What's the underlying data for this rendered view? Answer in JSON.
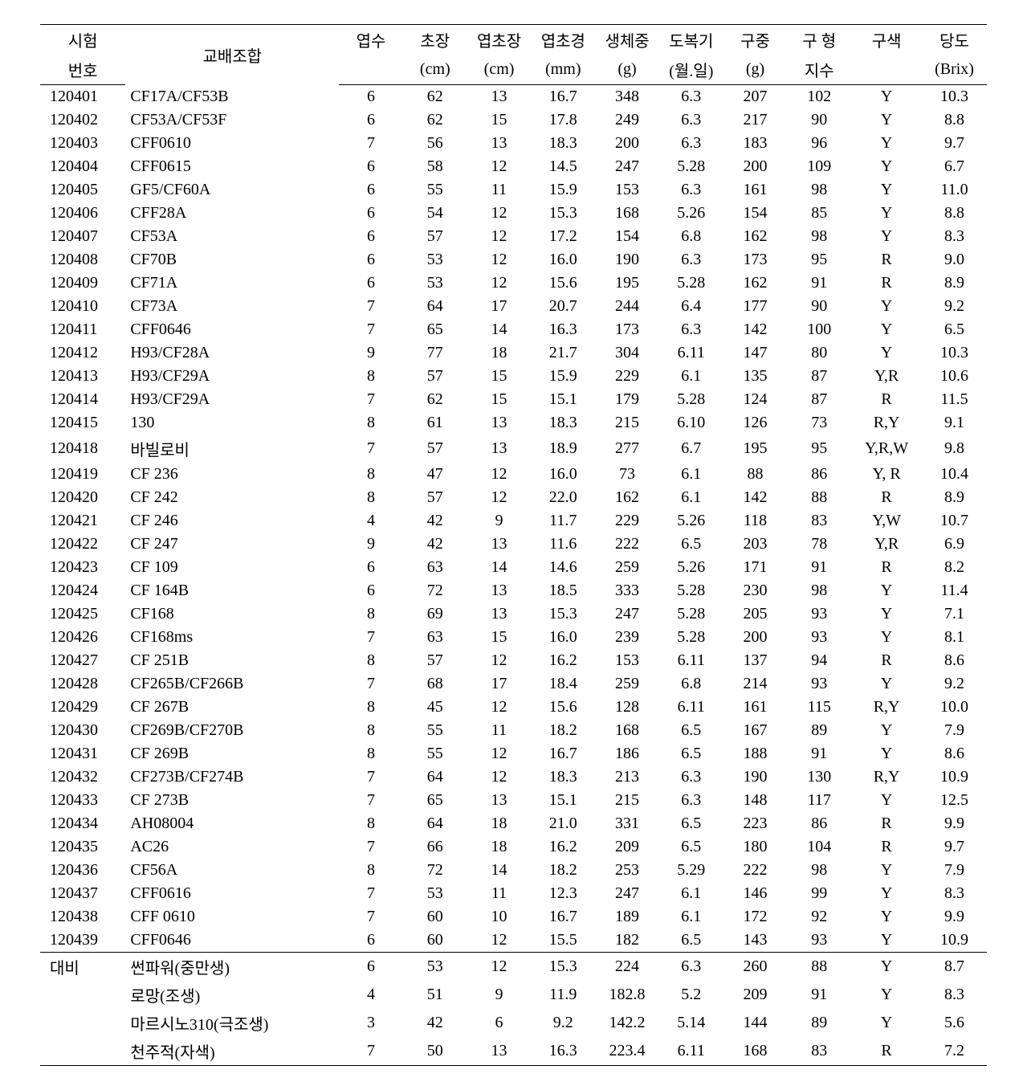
{
  "headers": {
    "row1": [
      "시험",
      "교배조합",
      "엽수",
      "초장",
      "엽초장",
      "엽초경",
      "생체중",
      "도복기",
      "구중",
      "구 형",
      "구색",
      "당도"
    ],
    "row2": [
      "번호",
      "",
      "",
      "(cm)",
      "(cm)",
      "(mm)",
      "(g)",
      "(월.일)",
      "(g)",
      "지수",
      "",
      "(Brix)"
    ]
  },
  "rows": [
    [
      "120401",
      "CF17A/CF53B",
      "6",
      "62",
      "13",
      "16.7",
      "348",
      "6.3",
      "207",
      "102",
      "Y",
      "10.3"
    ],
    [
      "120402",
      "CF53A/CF53F",
      "6",
      "62",
      "15",
      "17.8",
      "249",
      "6.3",
      "217",
      "90",
      "Y",
      "8.8"
    ],
    [
      "120403",
      "CFF0610",
      "7",
      "56",
      "13",
      "18.3",
      "200",
      "6.3",
      "183",
      "96",
      "Y",
      "9.7"
    ],
    [
      "120404",
      "CFF0615",
      "6",
      "58",
      "12",
      "14.5",
      "247",
      "5.28",
      "200",
      "109",
      "Y",
      "6.7"
    ],
    [
      "120405",
      "GF5/CF60A",
      "6",
      "55",
      "11",
      "15.9",
      "153",
      "6.3",
      "161",
      "98",
      "Y",
      "11.0"
    ],
    [
      "120406",
      "CFF28A",
      "6",
      "54",
      "12",
      "15.3",
      "168",
      "5.26",
      "154",
      "85",
      "Y",
      "8.8"
    ],
    [
      "120407",
      "CF53A",
      "6",
      "57",
      "12",
      "17.2",
      "154",
      "6.8",
      "162",
      "98",
      "Y",
      "8.3"
    ],
    [
      "120408",
      "CF70B",
      "6",
      "53",
      "12",
      "16.0",
      "190",
      "6.3",
      "173",
      "95",
      "R",
      "9.0"
    ],
    [
      "120409",
      "CF71A",
      "6",
      "53",
      "12",
      "15.6",
      "195",
      "5.28",
      "162",
      "91",
      "R",
      "8.9"
    ],
    [
      "120410",
      "CF73A",
      "7",
      "64",
      "17",
      "20.7",
      "244",
      "6.4",
      "177",
      "90",
      "Y",
      "9.2"
    ],
    [
      "120411",
      "CFF0646",
      "7",
      "65",
      "14",
      "16.3",
      "173",
      "6.3",
      "142",
      "100",
      "Y",
      "6.5"
    ],
    [
      "120412",
      "H93/CF28A",
      "9",
      "77",
      "18",
      "21.7",
      "304",
      "6.11",
      "147",
      "80",
      "Y",
      "10.3"
    ],
    [
      "120413",
      "H93/CF29A",
      "8",
      "57",
      "15",
      "15.9",
      "229",
      "6.1",
      "135",
      "87",
      "Y,R",
      "10.6"
    ],
    [
      "120414",
      "H93/CF29A",
      "7",
      "62",
      "15",
      "15.1",
      "179",
      "5.28",
      "124",
      "87",
      "R",
      "11.5"
    ],
    [
      "120415",
      "130",
      "8",
      "61",
      "13",
      "18.3",
      "215",
      "6.10",
      "126",
      "73",
      "R,Y",
      "9.1"
    ],
    [
      "120418",
      "바빌로비",
      "7",
      "57",
      "13",
      "18.9",
      "277",
      "6.7",
      "195",
      "95",
      "Y,R,W",
      "9.8"
    ],
    [
      "120419",
      "CF 236",
      "8",
      "47",
      "12",
      "16.0",
      "73",
      "6.1",
      "88",
      "86",
      "Y, R",
      "10.4"
    ],
    [
      "120420",
      "CF 242",
      "8",
      "57",
      "12",
      "22.0",
      "162",
      "6.1",
      "142",
      "88",
      "R",
      "8.9"
    ],
    [
      "120421",
      "CF 246",
      "4",
      "42",
      "9",
      "11.7",
      "229",
      "5.26",
      "118",
      "83",
      "Y,W",
      "10.7"
    ],
    [
      "120422",
      "CF 247",
      "9",
      "42",
      "13",
      "11.6",
      "222",
      "6.5",
      "203",
      "78",
      "Y,R",
      "6.9"
    ],
    [
      "120423",
      "CF 109",
      "6",
      "63",
      "14",
      "14.6",
      "259",
      "5.26",
      "171",
      "91",
      "R",
      "8.2"
    ],
    [
      "120424",
      "CF 164B",
      "6",
      "72",
      "13",
      "18.5",
      "333",
      "5.28",
      "230",
      "98",
      "Y",
      "11.4"
    ],
    [
      "120425",
      "CF168",
      "8",
      "69",
      "13",
      "15.3",
      "247",
      "5.28",
      "205",
      "93",
      "Y",
      "7.1"
    ],
    [
      "120426",
      "CF168ms",
      "7",
      "63",
      "15",
      "16.0",
      "239",
      "5.28",
      "200",
      "93",
      "Y",
      "8.1"
    ],
    [
      "120427",
      "CF 251B",
      "8",
      "57",
      "12",
      "16.2",
      "153",
      "6.11",
      "137",
      "94",
      "R",
      "8.6"
    ],
    [
      "120428",
      "CF265B/CF266B",
      "7",
      "68",
      "17",
      "18.4",
      "259",
      "6.8",
      "214",
      "93",
      "Y",
      "9.2"
    ],
    [
      "120429",
      "CF 267B",
      "8",
      "45",
      "12",
      "15.6",
      "128",
      "6.11",
      "161",
      "115",
      "R,Y",
      "10.0"
    ],
    [
      "120430",
      "CF269B/CF270B",
      "8",
      "55",
      "11",
      "18.2",
      "168",
      "6.5",
      "167",
      "89",
      "Y",
      "7.9"
    ],
    [
      "120431",
      "CF 269B",
      "8",
      "55",
      "12",
      "16.7",
      "186",
      "6.5",
      "188",
      "91",
      "Y",
      "8.6"
    ],
    [
      "120432",
      "CF273B/CF274B",
      "7",
      "64",
      "12",
      "18.3",
      "213",
      "6.3",
      "190",
      "130",
      "R,Y",
      "10.9"
    ],
    [
      "120433",
      "CF 273B",
      "7",
      "65",
      "13",
      "15.1",
      "215",
      "6.3",
      "148",
      "117",
      "Y",
      "12.5"
    ],
    [
      "120434",
      "AH08004",
      "8",
      "64",
      "18",
      "21.0",
      "331",
      "6.5",
      "223",
      "86",
      "R",
      "9.9"
    ],
    [
      "120435",
      "AC26",
      "7",
      "66",
      "18",
      "16.2",
      "209",
      "6.5",
      "180",
      "104",
      "R",
      "9.7"
    ],
    [
      "120436",
      "CF56A",
      "8",
      "72",
      "14",
      "18.2",
      "253",
      "5.29",
      "222",
      "98",
      "Y",
      "7.9"
    ],
    [
      "120437",
      "CFF0616",
      "7",
      "53",
      "11",
      "12.3",
      "247",
      "6.1",
      "146",
      "99",
      "Y",
      "8.3"
    ],
    [
      "120438",
      "CFF 0610",
      "7",
      "60",
      "10",
      "16.7",
      "189",
      "6.1",
      "172",
      "92",
      "Y",
      "9.9"
    ],
    [
      "120439",
      "CFF0646",
      "6",
      "60",
      "12",
      "15.5",
      "182",
      "6.5",
      "143",
      "93",
      "Y",
      "10.9"
    ]
  ],
  "compare_rows": [
    [
      "대비",
      "썬파워(중만생)",
      "6",
      "53",
      "12",
      "15.3",
      "224",
      "6.3",
      "260",
      "88",
      "Y",
      "8.7"
    ],
    [
      "",
      "로망(조생)",
      "4",
      "51",
      "9",
      "11.9",
      "182.8",
      "5.2",
      "209",
      "91",
      "Y",
      "8.3"
    ],
    [
      "",
      "마르시노310(극조생)",
      "3",
      "42",
      "6",
      "9.2",
      "142.2",
      "5.14",
      "144",
      "89",
      "Y",
      "5.6"
    ],
    [
      "",
      "천주적(자색)",
      "7",
      "50",
      "13",
      "16.3",
      "223.4",
      "6.11",
      "168",
      "83",
      "R",
      "7.2"
    ]
  ]
}
